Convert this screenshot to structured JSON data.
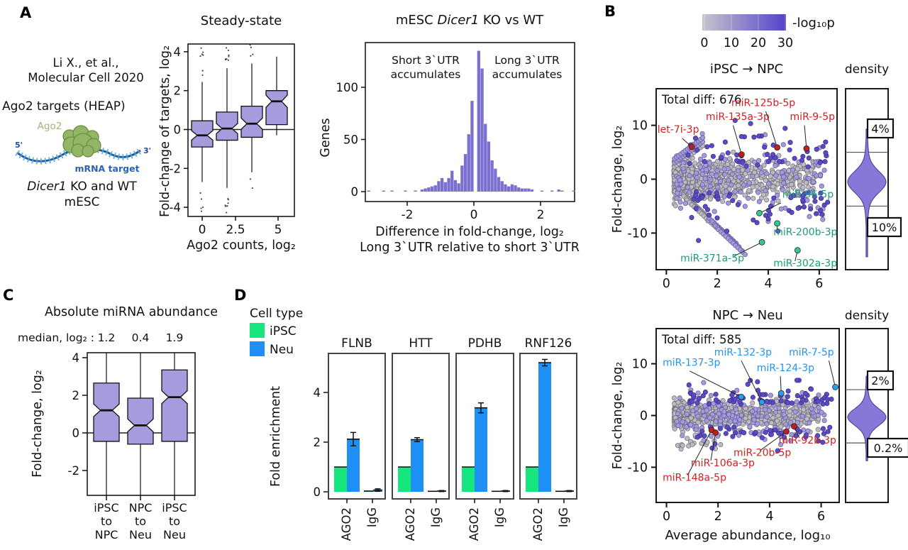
{
  "panels": {
    "a": "A",
    "b": "B",
    "c": "C",
    "d": "D"
  },
  "panel_a": {
    "citation_line1": "Li X., et al.,",
    "citation_line2": "Molecular Cell 2020",
    "assay": "Ago2 targets (HEAP)",
    "cartoon": {
      "protein": "Ago2",
      "five_prime": "5'",
      "three_prime": "3'",
      "target": "mRNA target"
    },
    "model_italic": "Dicer1",
    "model_rest": " KO and WT",
    "model_line2": "mESC"
  },
  "panel_d_legend": {
    "title": "Cell type",
    "items": [
      {
        "label": "iPSC",
        "color": "#17e57e"
      },
      {
        "label": "Neu",
        "color": "#1e90f5"
      }
    ]
  },
  "colors": {
    "box_fill": "#a89bdd",
    "hist_fill": "#7b6fd0",
    "violin_fill": "#8678d8",
    "violin_stroke": "#473a8c",
    "scatter_gray": "#bdbac3",
    "scatter_mid": "#a49bd7",
    "scatter_deep": "#5a4bc7",
    "point_red": "#c11f1f",
    "point_green": "#30c98e",
    "point_blue": "#2e9bf0",
    "label_red": "#d42020",
    "label_green": "#1b9e77",
    "label_blue": "#2196f3",
    "bar_green": "#17e57e",
    "bar_blue": "#1e90f5"
  },
  "chart_data": [
    {
      "id": "steady_state",
      "type": "boxplot",
      "title": "Steady-state",
      "xlabel": "Ago2 counts, log₂",
      "ylabel": "Fold-change of targets, log₂",
      "ylim": [
        -4.5,
        4.5
      ],
      "yticks": [
        4,
        2,
        0,
        -2,
        -4
      ],
      "xtick_labels": [
        "0",
        "2.5",
        "5"
      ],
      "boxes": [
        {
          "q1": -0.9,
          "median": -0.3,
          "q3": 0.45,
          "whisker_lo": -2.7,
          "whisker_hi": 2.45,
          "outliers_hi": 7,
          "outliers_lo": 5
        },
        {
          "q1": -0.55,
          "median": 0.05,
          "q3": 0.9,
          "whisker_lo": -3.0,
          "whisker_hi": 3.15,
          "outliers_hi": 8,
          "outliers_lo": 7
        },
        {
          "q1": -0.4,
          "median": 0.3,
          "q3": 1.2,
          "whisker_lo": -2.2,
          "whisker_hi": 3.4,
          "outliers_hi": 4,
          "outliers_lo": 2
        },
        {
          "q1": 0.25,
          "median": 1.45,
          "q3": 2.0,
          "whisker_lo": -0.3,
          "whisker_hi": 3.75,
          "outliers_hi": 0,
          "outliers_lo": 0
        }
      ]
    },
    {
      "id": "dicer_hist",
      "type": "histogram",
      "title_pre": "mESC ",
      "title_italic": "Dicer1",
      "title_post": " KO vs WT",
      "ylabel": "Genes",
      "xlabel_line1": "Difference in fold-change, log₂",
      "xlabel_line2": "Long 3`UTR relative to short 3`UTR",
      "annotation_left": [
        "Short 3`UTR",
        "accumulates"
      ],
      "annotation_right": [
        "Long 3`UTR",
        "accumulates"
      ],
      "yticks": [
        0,
        50,
        100
      ],
      "xticks": [
        -2,
        0,
        2
      ],
      "xlim": [
        -3.3,
        3.05
      ],
      "ylim": [
        0,
        143
      ],
      "bin_width": 0.1,
      "bins": [
        [
          -3.15,
          1
        ],
        [
          -2.7,
          1
        ],
        [
          -2.45,
          1
        ],
        [
          -2.05,
          1
        ],
        [
          -1.75,
          1
        ],
        [
          -1.55,
          2
        ],
        [
          -1.45,
          3
        ],
        [
          -1.35,
          4
        ],
        [
          -1.25,
          5
        ],
        [
          -1.15,
          6
        ],
        [
          -1.05,
          10
        ],
        [
          -0.95,
          13
        ],
        [
          -0.85,
          9
        ],
        [
          -0.75,
          13
        ],
        [
          -0.65,
          20
        ],
        [
          -0.55,
          11
        ],
        [
          -0.45,
          8
        ],
        [
          -0.35,
          25
        ],
        [
          -0.25,
          36
        ],
        [
          -0.15,
          55
        ],
        [
          -0.05,
          87
        ],
        [
          0.15,
          135
        ],
        [
          0.25,
          118
        ],
        [
          0.35,
          65
        ],
        [
          0.45,
          48
        ],
        [
          0.55,
          30
        ],
        [
          0.65,
          22
        ],
        [
          0.75,
          14
        ],
        [
          0.85,
          10
        ],
        [
          0.95,
          7
        ],
        [
          1.05,
          5
        ],
        [
          1.15,
          7
        ],
        [
          1.25,
          6
        ],
        [
          1.35,
          4
        ],
        [
          1.45,
          3
        ],
        [
          1.55,
          3
        ],
        [
          1.65,
          3
        ],
        [
          1.75,
          2
        ],
        [
          2.05,
          1
        ],
        [
          2.35,
          1
        ],
        [
          2.55,
          2
        ],
        [
          2.65,
          1
        ],
        [
          3.0,
          1
        ]
      ]
    },
    {
      "id": "pval_colorbar",
      "type": "colorbar",
      "label": "-log₁₀p",
      "ticks": [
        0,
        10,
        20,
        30
      ],
      "color_from": "#c7c4cc",
      "color_to": "#5243cb"
    },
    {
      "id": "ipsc_npc",
      "type": "ma_scatter",
      "title": "iPSC → NPC",
      "density_title": "density",
      "total_label": "Total diff: 676",
      "ylabel": "Fold-change, log₂",
      "xlabel": null,
      "xticks": [
        0,
        2,
        4,
        6
      ],
      "yticks": [
        10,
        0,
        -10
      ],
      "xlim": [
        -0.4,
        6.7
      ],
      "ylim": [
        -16.8,
        16.8
      ],
      "seed": 20,
      "cloud": "ipsc",
      "density": {
        "pct_top": "4%",
        "pct_bottom": "10%",
        "line_top": 5,
        "line_bottom": -5,
        "center": -0.5,
        "sigma": 1.9,
        "tail_top": 9.3,
        "tail_bottom": -14.5
      },
      "labeled_points": [
        {
          "name": "let-7i-3p",
          "x": 1.0,
          "y": 6.0,
          "color": "red",
          "lx": -0.35,
          "ly": 8.6,
          "from": [
            0.62,
            7.6
          ]
        },
        {
          "name": "miR-135a-3p",
          "x": 2.95,
          "y": 4.6,
          "color": "red",
          "lx": 1.55,
          "ly": 11.0,
          "from": [
            2.62,
            10.0
          ]
        },
        {
          "name": "miR-125b-5p",
          "x": 4.35,
          "y": 5.9,
          "color": "red",
          "lx": 2.55,
          "ly": 13.6,
          "from": [
            3.9,
            12.6
          ]
        },
        {
          "name": "miR-9-5p",
          "x": 5.5,
          "y": 5.7,
          "color": "red",
          "lx": 4.85,
          "ly": 11.0,
          "from": [
            5.42,
            10.0
          ]
        },
        {
          "name": "miR-96-5p",
          "x": 3.65,
          "y": -6.3,
          "color": "green",
          "lx": 4.55,
          "ly": -3.4,
          "from": [
            4.5,
            -4.4
          ]
        },
        {
          "name": "miR-200b-3p",
          "x": 4.35,
          "y": -8.2,
          "color": "green",
          "lx": 4.2,
          "ly": -10.4,
          "from": [
            4.35,
            -9.4
          ]
        },
        {
          "name": "miR-371a-5p",
          "x": 3.75,
          "y": -11.7,
          "color": "green",
          "lx": 0.55,
          "ly": -15.3,
          "from": [
            2.65,
            -14.3
          ]
        },
        {
          "name": "miR-302a-3p",
          "x": 5.15,
          "y": -13.2,
          "color": "green",
          "lx": 4.2,
          "ly": -16.2,
          "from": [
            5.05,
            -15.2
          ]
        }
      ]
    },
    {
      "id": "npc_neu",
      "type": "ma_scatter",
      "title": "NPC → Neu",
      "density_title": "density",
      "total_label": "Total diff: 585",
      "ylabel": "Fold-change, log₂",
      "xlabel": "Average abundance, log₁₀",
      "xticks": [
        0,
        2,
        4,
        6
      ],
      "yticks": [
        10,
        0,
        -10
      ],
      "xlim": [
        -0.4,
        6.7
      ],
      "ylim": [
        -16.8,
        16.8
      ],
      "seed": 77,
      "cloud": "npc",
      "density": {
        "pct_top": "2%",
        "pct_bottom": "0.2%",
        "line_top": 5,
        "line_bottom": -5.3,
        "center": -0.3,
        "sigma": 1.55,
        "tail_top": 7.6,
        "tail_bottom": -8.8
      },
      "labeled_points": [
        {
          "name": "miR-137-3p",
          "x": 2.9,
          "y": 3.6,
          "color": "blue",
          "lx": -0.15,
          "ly": 9.6,
          "from": [
            0.9,
            8.6
          ]
        },
        {
          "name": "miR-132-3p",
          "x": 3.7,
          "y": 2.6,
          "color": "blue",
          "lx": 1.85,
          "ly": 11.6,
          "from": [
            2.9,
            10.6
          ]
        },
        {
          "name": "miR-124-3p",
          "x": 4.45,
          "y": 4.3,
          "color": "blue",
          "lx": 3.5,
          "ly": 8.6,
          "from": [
            4.42,
            7.6
          ]
        },
        {
          "name": "miR-7-5p",
          "x": 6.55,
          "y": 5.5,
          "color": "blue",
          "lx": 4.75,
          "ly": 11.6,
          "from": [
            6.3,
            10.6
          ]
        },
        {
          "name": "miR-148a-5p",
          "x": 1.75,
          "y": -2.8,
          "color": "red",
          "lx": -0.15,
          "ly": -12.6,
          "from": [
            0.82,
            -11.5
          ]
        },
        {
          "name": "miR-106a-3p",
          "x": 1.9,
          "y": -3.3,
          "color": "red",
          "lx": 0.95,
          "ly": -9.8,
          "from": [
            1.72,
            -8.7
          ]
        },
        {
          "name": "miR-20b-5p",
          "x": 4.65,
          "y": -3.1,
          "color": "red",
          "lx": 2.6,
          "ly": -7.8,
          "from": [
            3.62,
            -6.8
          ]
        },
        {
          "name": "miR-92b-3p",
          "x": 4.95,
          "y": -2.1,
          "color": "red",
          "lx": 4.35,
          "ly": -5.4,
          "from": [
            5.15,
            -4.3
          ]
        }
      ]
    },
    {
      "id": "mirna_abundance",
      "type": "boxplot",
      "title": "Absolute miRNA abundance",
      "median_prefix": "median, log₂ :",
      "medians_text": [
        "1.2",
        "0.4",
        "1.9"
      ],
      "ylabel": "Fold-change, log₂",
      "yticks": [
        4,
        2,
        0,
        -2
      ],
      "ylim": [
        -3.4,
        4.3
      ],
      "categories": [
        [
          "iPSC",
          "to",
          "NPC"
        ],
        [
          "NPC",
          "to",
          "Neu"
        ],
        [
          "iPSC",
          "to",
          "Neu"
        ]
      ],
      "boxes": [
        {
          "q1": -0.45,
          "median": 1.2,
          "q3": 2.65
        },
        {
          "q1": -0.6,
          "median": 0.4,
          "q3": 1.85
        },
        {
          "q1": -0.45,
          "median": 1.9,
          "q3": 3.35
        }
      ],
      "whiskers_clipped": true
    },
    {
      "id": "fold_enrichment",
      "type": "grouped_bars",
      "ylabel": "Fold enrichment",
      "yticks": [
        0,
        2,
        4
      ],
      "ylim": [
        0,
        5.6
      ],
      "group_labels": [
        "AGO2",
        "IgG"
      ],
      "series": [
        "iPSC",
        "Neu"
      ],
      "facets": [
        {
          "gene": "FLNB",
          "AGO2": {
            "iPSC": 1.0,
            "Neu": 2.12,
            "Neu_err": 0.27
          },
          "IgG": {
            "iPSC": 0.03,
            "Neu": 0.07,
            "Neu_err": 0.05
          }
        },
        {
          "gene": "HTT",
          "AGO2": {
            "iPSC": 1.0,
            "Neu": 2.1,
            "Neu_err": 0.08
          },
          "IgG": {
            "iPSC": 0.02,
            "Neu": 0.03,
            "Neu_err": 0.02
          }
        },
        {
          "gene": "PDHB",
          "AGO2": {
            "iPSC": 1.0,
            "Neu": 3.38,
            "Neu_err": 0.2
          },
          "IgG": {
            "iPSC": 0.02,
            "Neu": 0.03,
            "Neu_err": 0.02
          }
        },
        {
          "gene": "RNF126",
          "AGO2": {
            "iPSC": 1.0,
            "Neu": 5.2,
            "Neu_err": 0.13
          },
          "IgG": {
            "iPSC": 0.02,
            "Neu": 0.03,
            "Neu_err": 0.02
          }
        }
      ]
    }
  ]
}
